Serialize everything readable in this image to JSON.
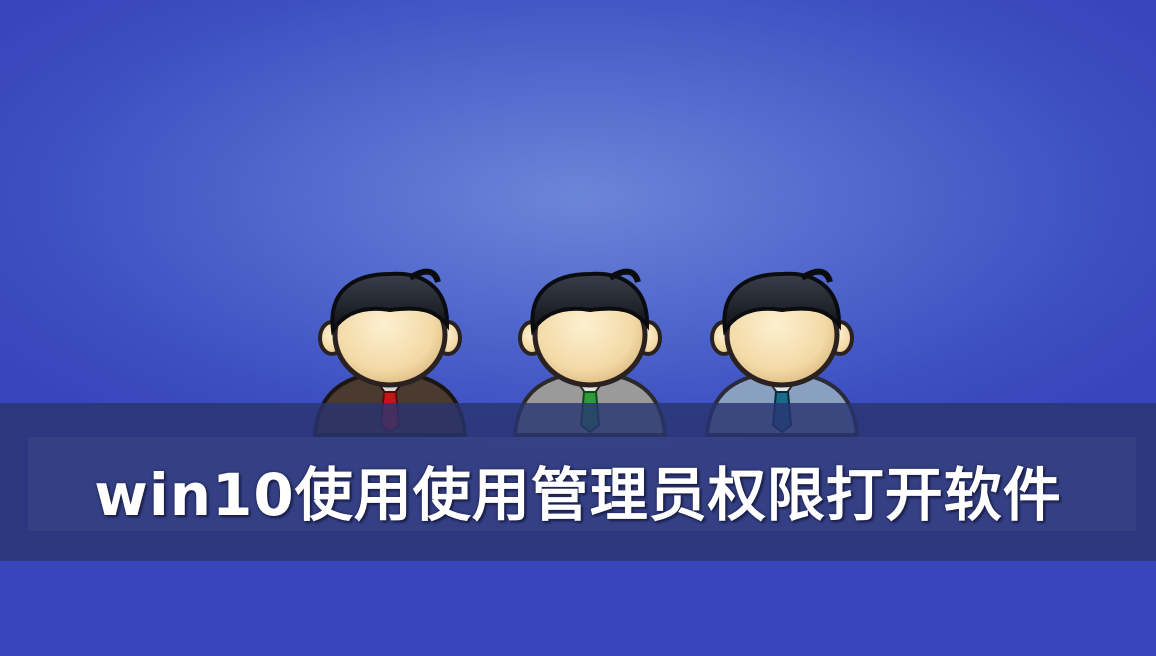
{
  "title": "win10使用使用管理员权限打开软件",
  "figures": [
    {
      "name": "person-brown-suit",
      "suit": "#4a3a30",
      "shirt": "#d9d9d9",
      "tie": "#c01818"
    },
    {
      "name": "person-grey-suit",
      "suit": "#9a9a9a",
      "shirt": "#e6e6e6",
      "tie": "#2e9a3a"
    },
    {
      "name": "person-blue-suit",
      "suit": "#8aa0c0",
      "shirt": "#e6e6e6",
      "tie": "#1a6a8a"
    }
  ]
}
